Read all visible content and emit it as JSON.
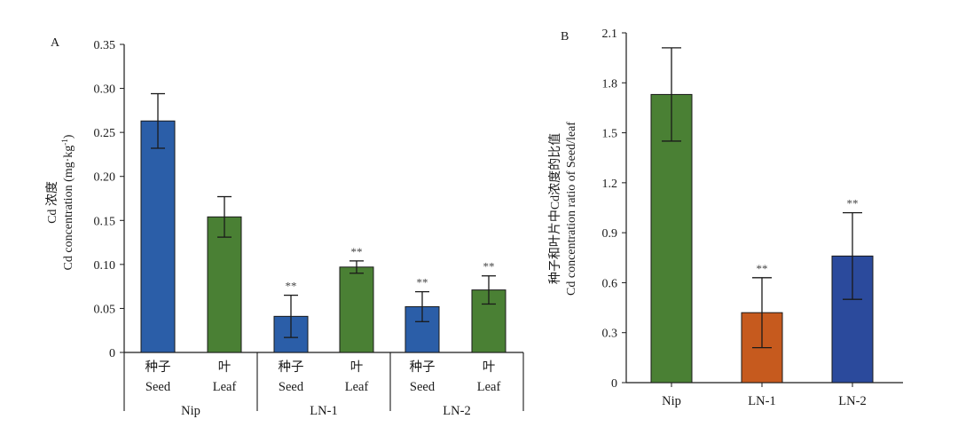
{
  "chart_data": [
    {
      "panel": "A",
      "type": "bar",
      "ylabel_zh": "Cd 浓度",
      "ylabel_en_main": "Cd concentration (mg·kg",
      "ylabel_en_sup": "-1",
      "ylabel_en_end": ")",
      "ylim": [
        0,
        0.35
      ],
      "yticks": [
        "0",
        "0.05",
        "0.10",
        "0.15",
        "0.20",
        "0.25",
        "0.30",
        "0.35"
      ],
      "bars": [
        {
          "group": "Nip",
          "zh": "种子",
          "en": "Seed",
          "value": 0.263,
          "err": 0.031,
          "color": "#2b5ea8",
          "sig": ""
        },
        {
          "group": "Nip",
          "zh": "叶",
          "en": "Leaf",
          "value": 0.154,
          "err": 0.023,
          "color": "#4a8034",
          "sig": ""
        },
        {
          "group": "LN-1",
          "zh": "种子",
          "en": "Seed",
          "value": 0.041,
          "err": 0.024,
          "color": "#2b5ea8",
          "sig": "**"
        },
        {
          "group": "LN-1",
          "zh": "叶",
          "en": "Leaf",
          "value": 0.097,
          "err": 0.007,
          "color": "#4a8034",
          "sig": "**"
        },
        {
          "group": "LN-2",
          "zh": "种子",
          "en": "Seed",
          "value": 0.052,
          "err": 0.017,
          "color": "#2b5ea8",
          "sig": "**"
        },
        {
          "group": "LN-2",
          "zh": "叶",
          "en": "Leaf",
          "value": 0.071,
          "err": 0.016,
          "color": "#4a8034",
          "sig": "**"
        }
      ],
      "groups": [
        "Nip",
        "LN-1",
        "LN-2"
      ]
    },
    {
      "panel": "B",
      "type": "bar",
      "ylabel_zh": "种子和叶片中Cd浓度的比值",
      "ylabel_en": "Cd concentration ratio of Seed/leaf",
      "ylim": [
        0,
        2.1
      ],
      "yticks": [
        "0",
        "0.3",
        "0.6",
        "0.9",
        "1.2",
        "1.5",
        "1.8",
        "2.1"
      ],
      "categories": [
        "Nip",
        "LN-1",
        "LN-2"
      ],
      "values": [
        1.73,
        0.42,
        0.76
      ],
      "errors": [
        0.28,
        0.21,
        0.26
      ],
      "colors": [
        "#4a8034",
        "#c65a1e",
        "#2b4a9c"
      ],
      "sig": [
        "",
        "**",
        "**"
      ]
    }
  ]
}
